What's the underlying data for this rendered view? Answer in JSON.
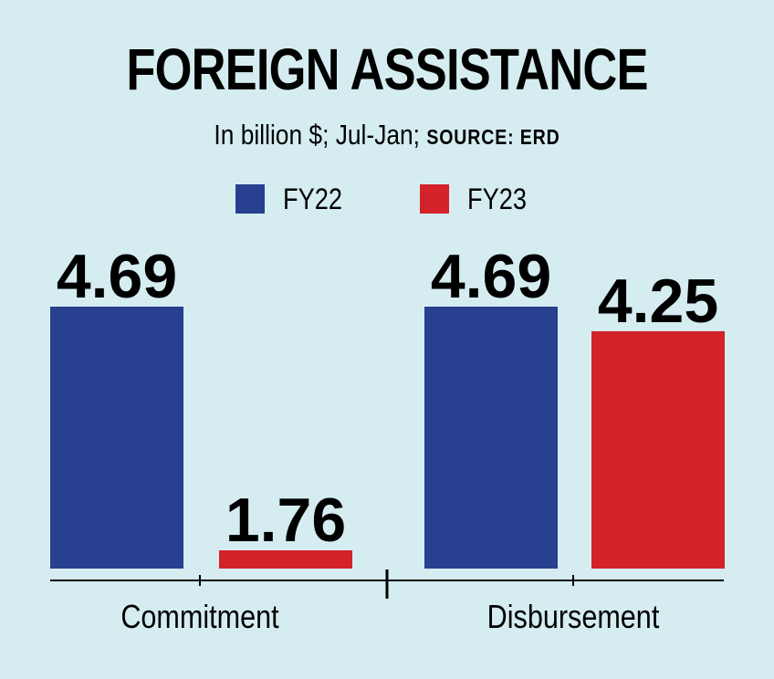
{
  "title": "FOREIGN ASSISTANCE",
  "subtitle": {
    "main": "In billion $; Jul-Jan;",
    "source": "SOURCE: ERD"
  },
  "colors": {
    "FY22": "#27408f",
    "FY23": "#d3222a",
    "background": "#d5edf0"
  },
  "chart_data": {
    "type": "bar",
    "categories": [
      "Commitment",
      "Disbursement"
    ],
    "series": [
      {
        "name": "FY22",
        "values": [
          4.69,
          4.69
        ]
      },
      {
        "name": "FY23",
        "values": [
          1.76,
          4.25
        ]
      }
    ],
    "value_labels": [
      [
        "4.69",
        "4.69"
      ],
      [
        "1.76",
        "4.25"
      ]
    ],
    "legend_position": "top-center",
    "grid": false,
    "note": "FY23 Commitment bar drawn short relative to its label in the original"
  }
}
